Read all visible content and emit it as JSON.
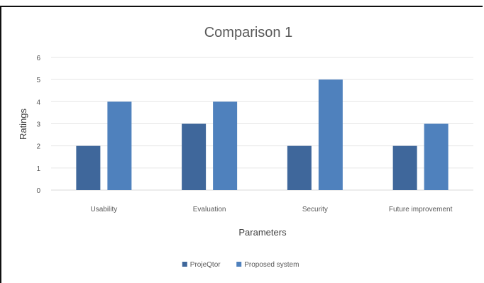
{
  "chart_data": {
    "type": "bar",
    "title": "Comparison 1",
    "xlabel": "Parameters",
    "ylabel": "Ratings",
    "categories": [
      "Usability",
      "Evaluation",
      "Security",
      "Future improvement"
    ],
    "series": [
      {
        "name": "ProjeQtor",
        "values": [
          2,
          3,
          2,
          2
        ],
        "color": "#3f679b"
      },
      {
        "name": "Proposed system",
        "values": [
          4,
          4,
          5,
          3
        ],
        "color": "#4f81bd"
      }
    ],
    "ylim": [
      0,
      6
    ],
    "yticks": [
      0,
      1,
      2,
      3,
      4,
      5,
      6
    ],
    "grid": true,
    "legend": "bottom"
  }
}
